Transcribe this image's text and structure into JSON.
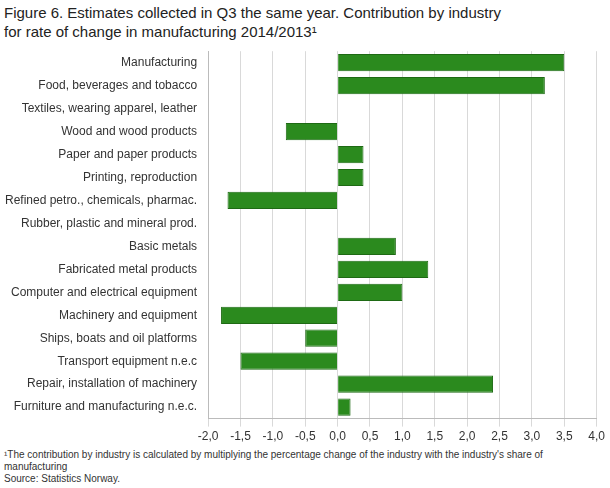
{
  "chart_data": {
    "type": "bar",
    "orientation": "horizontal",
    "title": [
      "Figure 6. Estimates collected in Q3 the same year. Contribution by industry",
      "for rate of change in manufacturing 2014/2013¹"
    ],
    "footnote": "¹The contribution by industry is calculated by multiplying the percentage change of the industry with the industry's share of manufacturing",
    "source": "Source: Statistics Norway.",
    "categories": [
      "Manufacturing",
      "Food, beverages and tobacco",
      "Textiles, wearing apparel, leather",
      "Wood and wood products",
      "Paper and paper products",
      "Printing, reproduction",
      "Refined petro., chemicals, pharmac.",
      "Rubber, plastic and mineral prod.",
      "Basic metals",
      "Fabricated metal products",
      "Computer and electrical equipment",
      "Machinery and equipment",
      "Ships, boats and oil platforms",
      "Transport equipment n.e.c",
      "Repair, installation of machinery",
      "Furniture and manufacturing n.e.c."
    ],
    "values": [
      3.5,
      3.2,
      0.0,
      -0.8,
      0.4,
      0.4,
      -1.7,
      0.0,
      0.9,
      1.4,
      1.0,
      -1.8,
      -0.5,
      -1.5,
      2.4,
      0.2
    ],
    "color": "#2b8a1e",
    "xlim": [
      -2.0,
      4.0
    ],
    "xticks": [
      {
        "value": -2.0,
        "label": "-2,0"
      },
      {
        "value": -1.5,
        "label": "-1,5"
      },
      {
        "value": -1.0,
        "label": "-1,0"
      },
      {
        "value": -0.5,
        "label": "-0,5"
      },
      {
        "value": 0.0,
        "label": "0,0"
      },
      {
        "value": 0.5,
        "label": "0,5"
      },
      {
        "value": 1.0,
        "label": "1,0"
      },
      {
        "value": 1.5,
        "label": "1,5"
      },
      {
        "value": 2.0,
        "label": "2,0"
      },
      {
        "value": 2.5,
        "label": "2,5"
      },
      {
        "value": 3.0,
        "label": "3,0"
      },
      {
        "value": 3.5,
        "label": "3,5"
      },
      {
        "value": 4.0,
        "label": "4,0"
      }
    ],
    "grid": true
  }
}
